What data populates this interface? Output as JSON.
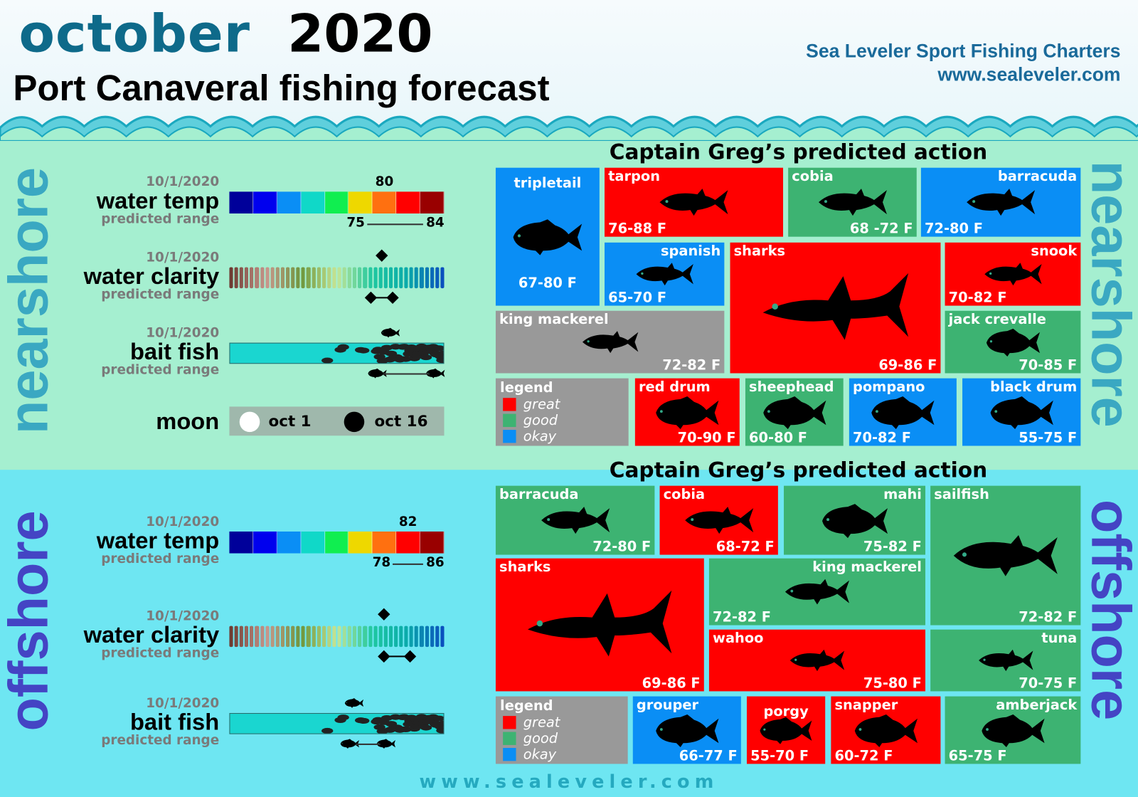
{
  "header": {
    "month": "october",
    "year": "2020",
    "subtitle": "Port Canaveral fishing forecast",
    "brand": "Sea Leveler Sport Fishing Charters",
    "url": "www.sealeveler.com"
  },
  "colors": {
    "great": "#ff0000",
    "good": "#3db372",
    "okay": "#0a8ef5",
    "neutral": "#999999",
    "nearshore_bg": "#a5efd0",
    "offshore_bg": "#6ee6f2",
    "nearshore_label": "#3aa8c2",
    "offshore_label": "#4444c4"
  },
  "temp_scale_colors": [
    "#00009a",
    "#0000ee",
    "#0a8ef5",
    "#10d8c8",
    "#10ee50",
    "#eed800",
    "#ff7010",
    "#ff0000",
    "#990000"
  ],
  "nearshore": {
    "side_label": "nearshore",
    "action_title": "Captain Greg’s predicted action",
    "water_temp": {
      "date": "10/1/2020",
      "label": "water temp",
      "sub": "predicted range",
      "current": "80",
      "range_low": "75",
      "range_high": "84",
      "current_fraction": 0.72,
      "range_fraction": [
        0.6,
        0.97
      ]
    },
    "water_clarity": {
      "date": "10/1/2020",
      "label": "water clarity",
      "sub": "predicted range",
      "current_fraction": 0.71,
      "range_fraction": [
        0.66,
        0.76
      ]
    },
    "bait_fish": {
      "date": "10/1/2020",
      "label": "bait fish",
      "sub": "predicted range",
      "current_fraction": 0.75,
      "range_fraction": [
        0.69,
        0.96
      ]
    },
    "moon": {
      "label": "moon",
      "full": "oct 1",
      "new": "oct 16"
    },
    "legend": {
      "title": "legend",
      "great": "great",
      "good": "good",
      "okay": "okay"
    },
    "species": [
      {
        "name": "tripletail",
        "range": "67-80 F",
        "rating": "okay"
      },
      {
        "name": "tarpon",
        "range": "76-88 F",
        "rating": "great"
      },
      {
        "name": "cobia",
        "range": "68 -72 F",
        "rating": "good"
      },
      {
        "name": "barracuda",
        "range": "72-80 F",
        "rating": "okay"
      },
      {
        "name": "spanish",
        "range": "65-70 F",
        "rating": "okay"
      },
      {
        "name": "sharks",
        "range": "69-86 F",
        "rating": "great"
      },
      {
        "name": "snook",
        "range": "70-82 F",
        "rating": "great"
      },
      {
        "name": "king mackerel",
        "range": "72-82 F",
        "rating": "neutral"
      },
      {
        "name": "jack crevalle",
        "range": "70-85 F",
        "rating": "good"
      },
      {
        "name": "red drum",
        "range": "70-90 F",
        "rating": "great"
      },
      {
        "name": "sheephead",
        "range": "60-80 F",
        "rating": "good"
      },
      {
        "name": "pompano",
        "range": "70-82 F",
        "rating": "okay"
      },
      {
        "name": "black drum",
        "range": "55-75 F",
        "rating": "okay"
      }
    ]
  },
  "offshore": {
    "side_label": "offshore",
    "action_title": "Captain Greg’s predicted action",
    "water_temp": {
      "date": "10/1/2020",
      "label": "water temp",
      "sub": "predicted range",
      "current": "82",
      "range_low": "78",
      "range_high": "86",
      "current_fraction": 0.83,
      "range_fraction": [
        0.72,
        0.97
      ]
    },
    "water_clarity": {
      "date": "10/1/2020",
      "label": "water clarity",
      "sub": "predicted range",
      "current_fraction": 0.72,
      "range_fraction": [
        0.72,
        0.84
      ]
    },
    "bait_fish": {
      "date": "10/1/2020",
      "label": "bait fish",
      "sub": "predicted range",
      "current_fraction": 0.58,
      "range_fraction": [
        0.56,
        0.73
      ]
    },
    "legend": {
      "title": "legend",
      "great": "great",
      "good": "good",
      "okay": "okay"
    },
    "species": [
      {
        "name": "barracuda",
        "range": "72-80 F",
        "rating": "good"
      },
      {
        "name": "cobia",
        "range": "68-72 F",
        "rating": "great"
      },
      {
        "name": "mahi",
        "range": "75-82 F",
        "rating": "good"
      },
      {
        "name": "sailfish",
        "range": "72-82 F",
        "rating": "good"
      },
      {
        "name": "sharks",
        "range": "69-86 F",
        "rating": "great"
      },
      {
        "name": "king mackerel",
        "range": "72-82 F",
        "rating": "good"
      },
      {
        "name": "wahoo",
        "range": "75-80 F",
        "rating": "great"
      },
      {
        "name": "tuna",
        "range": "70-75 F",
        "rating": "good"
      },
      {
        "name": "grouper",
        "range": "66-77 F",
        "rating": "okay"
      },
      {
        "name": "porgy",
        "range": "55-70 F",
        "rating": "great"
      },
      {
        "name": "snapper",
        "range": "60-72 F",
        "rating": "great"
      },
      {
        "name": "amberjack",
        "range": "65-75 F",
        "rating": "good"
      }
    ]
  },
  "footer": {
    "url": "www.sealeveler.com"
  }
}
